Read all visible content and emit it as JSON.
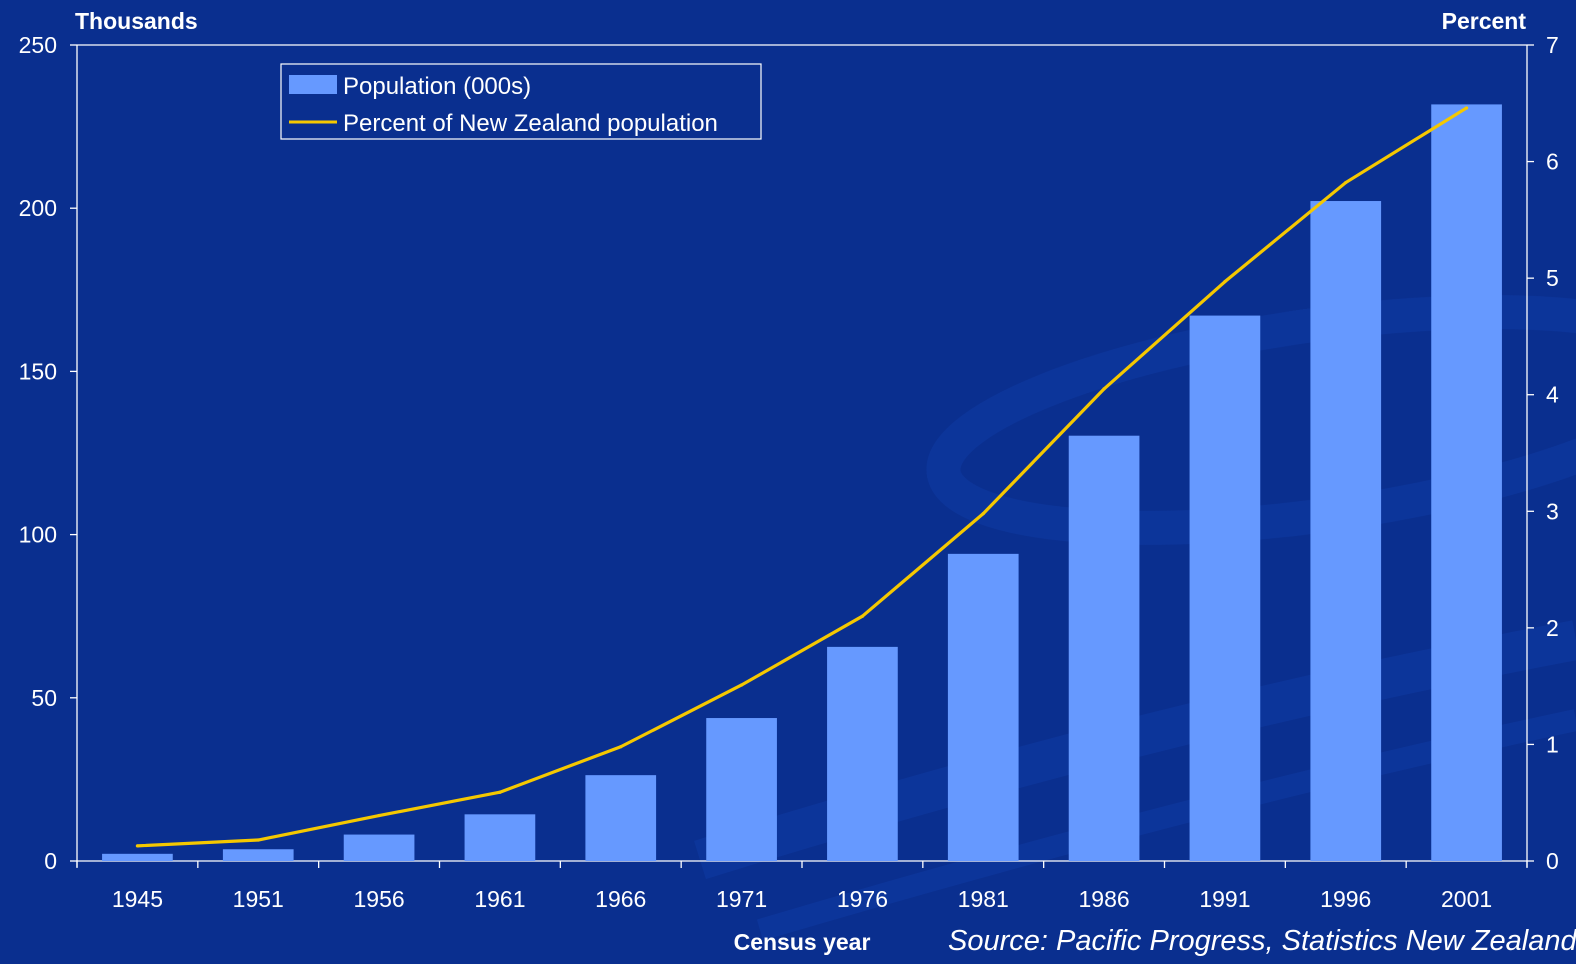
{
  "chart_data": {
    "type": "bar",
    "categories": [
      "1945",
      "1951",
      "1956",
      "1961",
      "1966",
      "1971",
      "1976",
      "1981",
      "1986",
      "1991",
      "1996",
      "2001"
    ],
    "series": [
      {
        "name": "Population (000s)",
        "type": "bar",
        "axis": "left",
        "color": "#6699ff",
        "values": [
          2.2,
          3.6,
          8.1,
          14.3,
          26.3,
          43.8,
          65.6,
          94.1,
          130.3,
          167.1,
          202.2,
          231.8
        ]
      },
      {
        "name": "Percent of New Zealand population",
        "type": "line",
        "axis": "right",
        "color": "#f5c800",
        "values": [
          0.13,
          0.18,
          0.39,
          0.59,
          0.98,
          1.51,
          2.1,
          2.98,
          4.05,
          4.97,
          5.82,
          6.46
        ]
      }
    ],
    "title": "",
    "ylabel": "Thousands",
    "y2label": "Percent",
    "xlabel": "Census year",
    "ylim": [
      0,
      250
    ],
    "y2lim": [
      0,
      7
    ],
    "yticks": [
      0,
      50,
      100,
      150,
      200,
      250
    ],
    "y2ticks": [
      0,
      1,
      2,
      3,
      4,
      5,
      6,
      7
    ],
    "grid": false,
    "legend": "top-left"
  },
  "source": "Source: Pacific Progress, Statistics New Zealand"
}
